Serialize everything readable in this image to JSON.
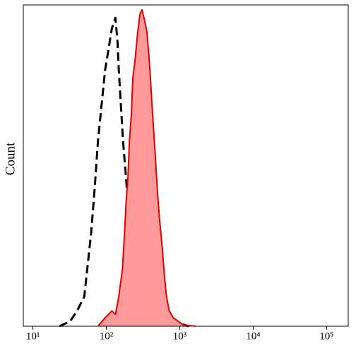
{
  "chart_data": {
    "type": "histogram-overlay",
    "y_label": "Count",
    "xscale": "log",
    "xlim": [
      7.4,
      197000
    ],
    "xticks": [
      {
        "value": 10,
        "label": "10¹"
      },
      {
        "value": 100,
        "label": "10²"
      },
      {
        "value": 1000,
        "label": "10³"
      },
      {
        "value": 10000,
        "label": "10⁴"
      },
      {
        "value": 100000,
        "label": "10⁵"
      }
    ],
    "ylim": [
      0,
      100
    ],
    "series": [
      {
        "color": "#000000",
        "style": "dashed",
        "filled": false,
        "x": [
          23,
          32,
          40,
          50,
          55,
          62,
          69,
          77,
          86,
          96,
          107,
          119,
          133,
          142,
          148,
          158,
          169,
          185,
          197,
          215,
          240,
          268,
          306,
          357,
          425,
          530,
          689,
          957,
          1330
        ],
        "values": [
          0,
          1.5,
          4.8,
          9.2,
          18,
          29,
          42.2,
          57.6,
          68.6,
          79.6,
          86.2,
          92.7,
          96,
          88.4,
          79.6,
          68.6,
          57.6,
          46.6,
          37.8,
          29,
          22.4,
          19.1,
          15.8,
          11.4,
          7,
          4.8,
          2.6,
          0.9,
          0
        ]
      },
      {
        "color": "#e00000",
        "fill": "#ff9a9a",
        "style": "solid",
        "filled": true,
        "x": [
          77,
          96,
          119,
          133,
          148,
          166,
          177,
          185,
          197,
          206,
          220,
          230,
          246,
          268,
          287,
          306,
          334,
          357,
          381,
          398,
          425,
          464,
          496,
          530,
          578,
          617,
          659,
          719,
          820,
          957,
          1117,
          1656
        ],
        "values": [
          0,
          2.6,
          4.8,
          3.7,
          9.2,
          18,
          29,
          37.8,
          46.6,
          57.6,
          66.4,
          77.4,
          82.9,
          91.6,
          97.1,
          98.5,
          94.9,
          91.6,
          84,
          77.4,
          66.4,
          53.2,
          42.2,
          33.4,
          24.6,
          15.8,
          9.2,
          4.8,
          2.6,
          1.5,
          0.4,
          0
        ]
      }
    ]
  }
}
